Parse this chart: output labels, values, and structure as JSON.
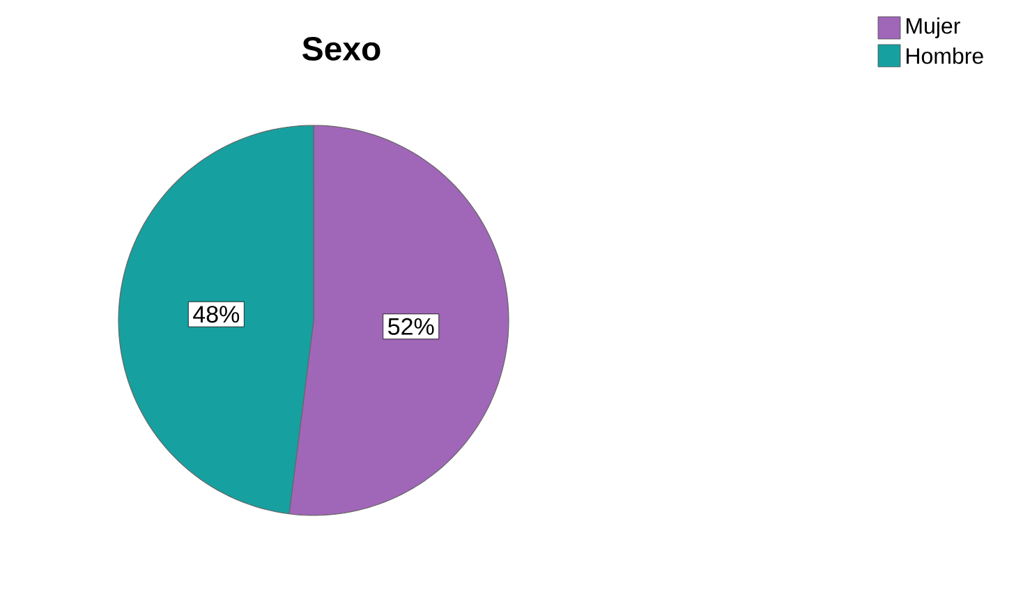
{
  "chart_data": {
    "type": "pie",
    "title": "Sexo",
    "categories": [
      "Mujer",
      "Hombre"
    ],
    "values": [
      52,
      48
    ],
    "value_labels": [
      "52%",
      "48%"
    ],
    "colors": [
      "#a066b8",
      "#17a0a0"
    ],
    "legend": "top right"
  }
}
